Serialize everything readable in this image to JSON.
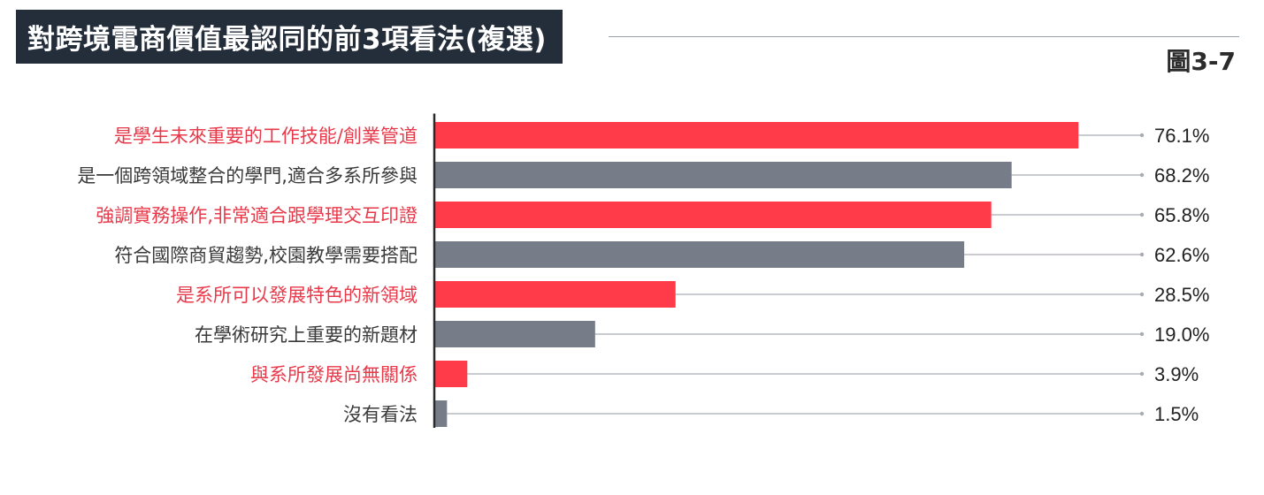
{
  "title": "對跨境電商價值最認同的前3項看法(複選)",
  "figure_label": "圖3-7",
  "colors": {
    "highlight": "#ff3b4a",
    "neutral": "#777d88",
    "highlight_text": "#e8394a",
    "neutral_text": "#3a3a3a",
    "axis": "#2a2a2a",
    "leader": "#a8acb2"
  },
  "chart_data": {
    "type": "bar",
    "orientation": "horizontal",
    "title": "對跨境電商價值最認同的前3項看法(複選)",
    "categories": [
      "是學生未來重要的工作技能/創業管道",
      "是一個跨領域整合的學門,適合多系所參與",
      "強調實務操作,非常適合跟學理交互印證",
      "符合國際商貿趨勢,校園教學需要搭配",
      "是系所可以發展特色的新領域",
      "在學術研究上重要的新題材",
      "與系所發展尚無關係",
      "沒有看法"
    ],
    "values": [
      76.1,
      68.2,
      65.8,
      62.6,
      28.5,
      19.0,
      3.9,
      1.5
    ],
    "value_labels": [
      "76.1%",
      "68.2%",
      "65.8%",
      "62.6%",
      "28.5%",
      "19.0%",
      "3.9%",
      "1.5%"
    ],
    "highlighted": [
      true,
      false,
      true,
      false,
      true,
      false,
      true,
      false
    ],
    "unit": "%",
    "grid": false,
    "legend": "none"
  }
}
